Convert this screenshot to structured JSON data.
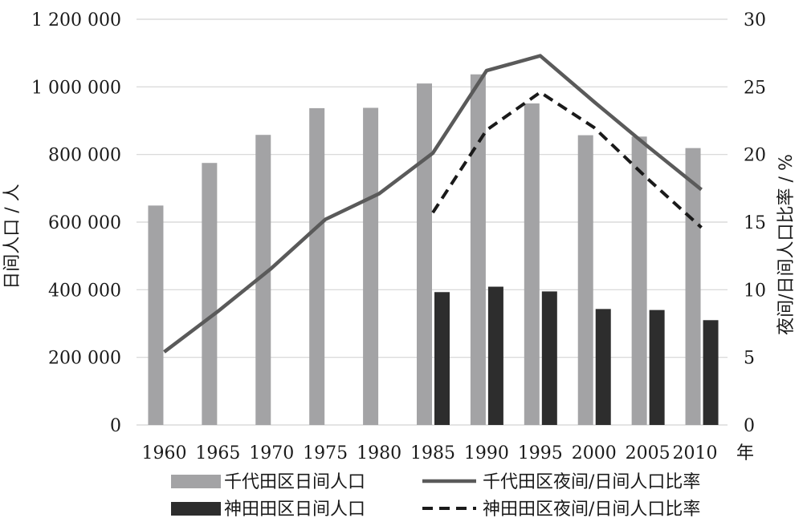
{
  "chart_data": {
    "type": "bar",
    "categories": [
      "1960",
      "1965",
      "1970",
      "1975",
      "1980",
      "1985",
      "1990",
      "1995",
      "2000",
      "2005",
      "2010"
    ],
    "x_unit": "年",
    "series": [
      {
        "name": "千代田区日间人口",
        "kind": "bar",
        "axis": "left",
        "color": "#a3a3a5",
        "values": [
          649000,
          775000,
          858000,
          937000,
          938000,
          1010000,
          1037000,
          951000,
          857000,
          853000,
          819000
        ]
      },
      {
        "name": "神田田区日间人口",
        "kind": "bar",
        "axis": "left",
        "color": "#2d2d2d",
        "values": [
          null,
          null,
          null,
          null,
          null,
          393000,
          409000,
          395000,
          343000,
          340000,
          310000
        ]
      },
      {
        "name": "千代田区夜间/日间人口比率",
        "kind": "line",
        "style": "solid",
        "axis": "right",
        "color": "#5a5a5a",
        "values": [
          5.4,
          8.4,
          11.6,
          15.2,
          17.1,
          20.1,
          26.2,
          27.3,
          23.9,
          20.6,
          17.4
        ]
      },
      {
        "name": "神田田区夜间/日间人口比率",
        "kind": "line",
        "style": "dashed",
        "axis": "right",
        "color": "#1a1a1a",
        "values": [
          null,
          null,
          null,
          null,
          null,
          15.7,
          21.8,
          24.6,
          22.0,
          18.2,
          14.6
        ]
      }
    ],
    "ylabel": "日间人口 / 人",
    "y2label": "夜间/日间人口比率 / %",
    "ylim": [
      0,
      1200000
    ],
    "y2lim": [
      0,
      30
    ],
    "yticks": [
      "0",
      "200 000",
      "400 000",
      "600 000",
      "800 000",
      "1 000 000",
      "1 200 000"
    ],
    "y2ticks": [
      "0",
      "5",
      "10",
      "15",
      "20",
      "25",
      "30"
    ],
    "grid": true,
    "legend_position": "bottom"
  }
}
